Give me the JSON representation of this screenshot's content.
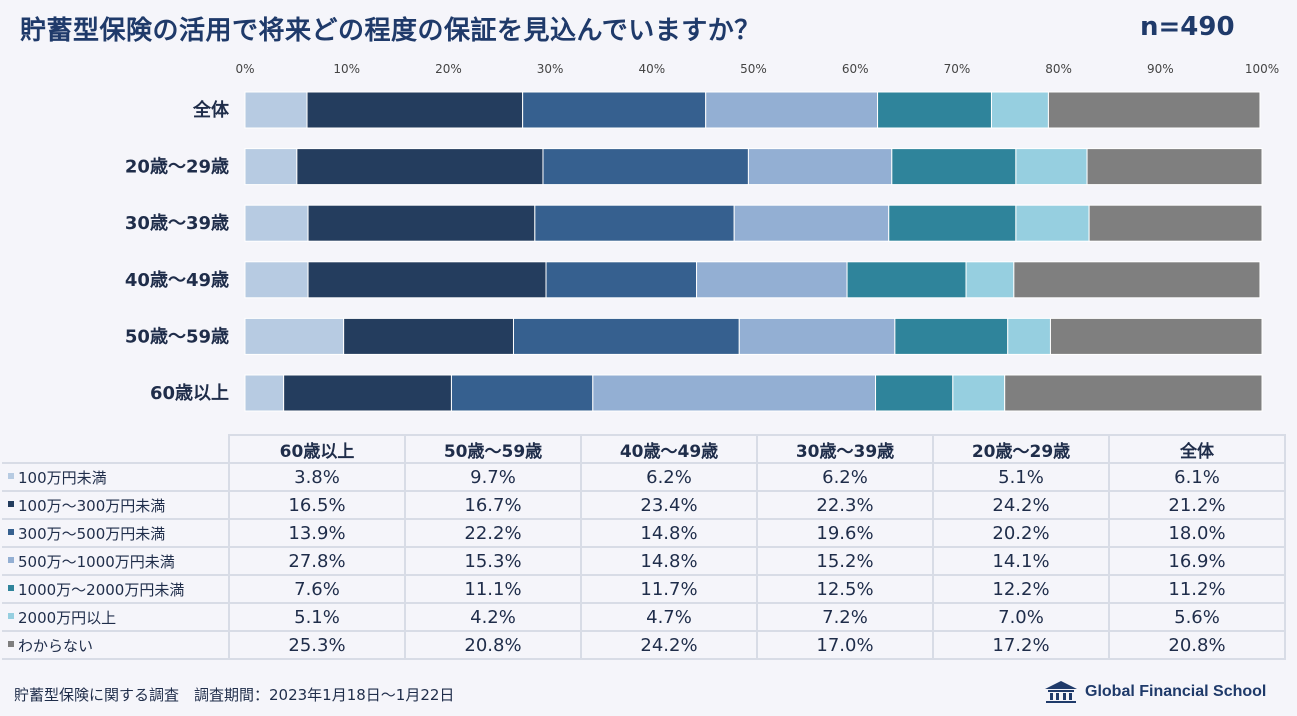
{
  "title": "貯蓄型保険の活用で将来どの程度の保証を見込んでいますか？",
  "sample_size": "n=490",
  "footer": "貯蓄型保険に関する調査　調査期間：2023年1月18日～1月22日",
  "brand": "Global Financial School",
  "chart_data": {
    "type": "bar",
    "orientation": "horizontal",
    "stacked": true,
    "percent_axis": true,
    "xlim": [
      0,
      100
    ],
    "x_ticks": [
      "0%",
      "10%",
      "20%",
      "30%",
      "40%",
      "50%",
      "60%",
      "70%",
      "80%",
      "90%",
      "100%"
    ],
    "categories": [
      "全体",
      "20歳～29歳",
      "30歳～39歳",
      "40歳～49歳",
      "50歳～59歳",
      "60歳以上"
    ],
    "series": [
      {
        "name": "100万円未満",
        "color": "#b7cbe2",
        "values": [
          6.1,
          5.1,
          6.2,
          6.2,
          9.7,
          3.8
        ]
      },
      {
        "name": "100万～300万円未満",
        "color": "#243d5e",
        "values": [
          21.2,
          24.2,
          22.3,
          23.4,
          16.7,
          16.5
        ]
      },
      {
        "name": "300万～500万円未満",
        "color": "#36608f",
        "values": [
          18.0,
          20.2,
          19.6,
          14.8,
          22.2,
          13.9
        ]
      },
      {
        "name": "500万～1000万円未満",
        "color": "#93afd3",
        "values": [
          16.9,
          14.1,
          15.2,
          14.8,
          15.3,
          27.8
        ]
      },
      {
        "name": "1000万～2000万円未満",
        "color": "#2f849b",
        "values": [
          11.2,
          12.2,
          12.5,
          11.7,
          11.1,
          7.6
        ]
      },
      {
        "name": "2000万円以上",
        "color": "#96cfe0",
        "values": [
          5.6,
          7.0,
          7.2,
          4.7,
          4.2,
          5.1
        ]
      },
      {
        "name": "わからない",
        "color": "#7f7f7f",
        "values": [
          20.8,
          17.2,
          17.0,
          24.2,
          20.8,
          25.3
        ]
      }
    ]
  },
  "table": {
    "columns": [
      "60歳以上",
      "50歳～59歳",
      "40歳～49歳",
      "30歳～39歳",
      "20歳～29歳",
      "全体"
    ],
    "rows": [
      {
        "label": "100万円未満",
        "values": [
          "3.8%",
          "9.7%",
          "6.2%",
          "6.2%",
          "5.1%",
          "6.1%"
        ]
      },
      {
        "label": "100万～300万円未満",
        "values": [
          "16.5%",
          "16.7%",
          "23.4%",
          "22.3%",
          "24.2%",
          "21.2%"
        ]
      },
      {
        "label": "300万～500万円未満",
        "values": [
          "13.9%",
          "22.2%",
          "14.8%",
          "19.6%",
          "20.2%",
          "18.0%"
        ]
      },
      {
        "label": "500万～1000万円未満",
        "values": [
          "27.8%",
          "15.3%",
          "14.8%",
          "15.2%",
          "14.1%",
          "16.9%"
        ]
      },
      {
        "label": "1000万～2000万円未満",
        "values": [
          "7.6%",
          "11.1%",
          "11.7%",
          "12.5%",
          "12.2%",
          "11.2%"
        ]
      },
      {
        "label": "2000万円以上",
        "values": [
          "5.1%",
          "4.2%",
          "4.7%",
          "7.2%",
          "7.0%",
          "5.6%"
        ]
      },
      {
        "label": "わからない",
        "values": [
          "25.3%",
          "20.8%",
          "24.2%",
          "17.0%",
          "17.2%",
          "20.8%"
        ]
      }
    ]
  }
}
